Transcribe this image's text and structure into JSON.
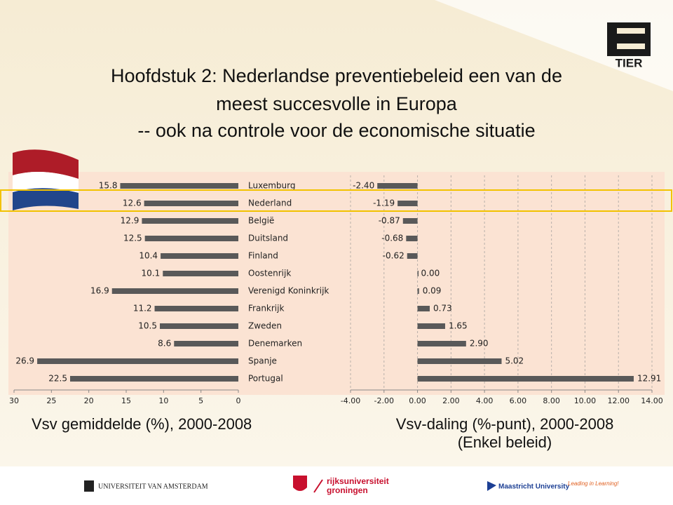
{
  "title_lines": [
    "Hoofdstuk 2: Nederlandse preventiebeleid een van de",
    "meest succesvolle in Europa",
    "-- ook na controle voor de economische situatie"
  ],
  "chart_data": [
    {
      "type": "bar",
      "orientation": "horizontal",
      "caption": "Vsv gemiddelde (%), 2000-2008",
      "categories": [
        "Luxemburg",
        "Nederland",
        "België",
        "Duitsland",
        "Finland",
        "Oostenrijk",
        "Verenigd Koninkrijk",
        "Frankrijk",
        "Zweden",
        "Denemarken",
        "Spanje",
        "Portugal"
      ],
      "values": [
        15.8,
        12.6,
        12.9,
        12.5,
        10.4,
        10.1,
        16.9,
        11.2,
        10.5,
        8.6,
        26.9,
        22.5
      ],
      "color": "#595959",
      "xlim": [
        30,
        0
      ],
      "xticks": [
        30,
        25,
        20,
        15,
        10,
        5,
        0
      ],
      "grid": false
    },
    {
      "type": "bar",
      "orientation": "horizontal",
      "caption": "Vsv-daling (%-punt), 2000-2008",
      "subcaption": "(Enkel beleid)",
      "values": [
        -2.4,
        -1.19,
        -0.87,
        -0.68,
        -0.62,
        0,
        0.09,
        0.73,
        1.65,
        2.9,
        5.02,
        12.91
      ],
      "value_labels": [
        "-2.40",
        "-1.19",
        "-0.87",
        "-0.68",
        "-0.62",
        "0.00",
        "0.09",
        "0.73",
        "1.65",
        "2.90",
        "5.02",
        "12.91"
      ],
      "color": "#595959",
      "xlim": [
        -4,
        14
      ],
      "xticks": [
        {
          "value": -4,
          "label": "-4.00"
        },
        {
          "value": -2,
          "label": "-2.00"
        },
        {
          "value": 0,
          "label": "0.00"
        },
        {
          "value": 2,
          "label": "2.00"
        },
        {
          "value": 4,
          "label": "4.00"
        },
        {
          "value": 6,
          "label": "6.00"
        },
        {
          "value": 8,
          "label": "8.00"
        },
        {
          "value": 10,
          "label": "10.00"
        },
        {
          "value": 12,
          "label": "12.00"
        },
        {
          "value": 14,
          "label": "14.00"
        }
      ],
      "grid": true
    }
  ],
  "logos": {
    "tier": "TIER",
    "uva": "UNIVERSITEIT VAN AMSTERDAM",
    "rug_1": "rijksuniversiteit",
    "rug_2": "groningen",
    "um": "Maastricht University",
    "um_slogan": "Leading in Learning!"
  }
}
